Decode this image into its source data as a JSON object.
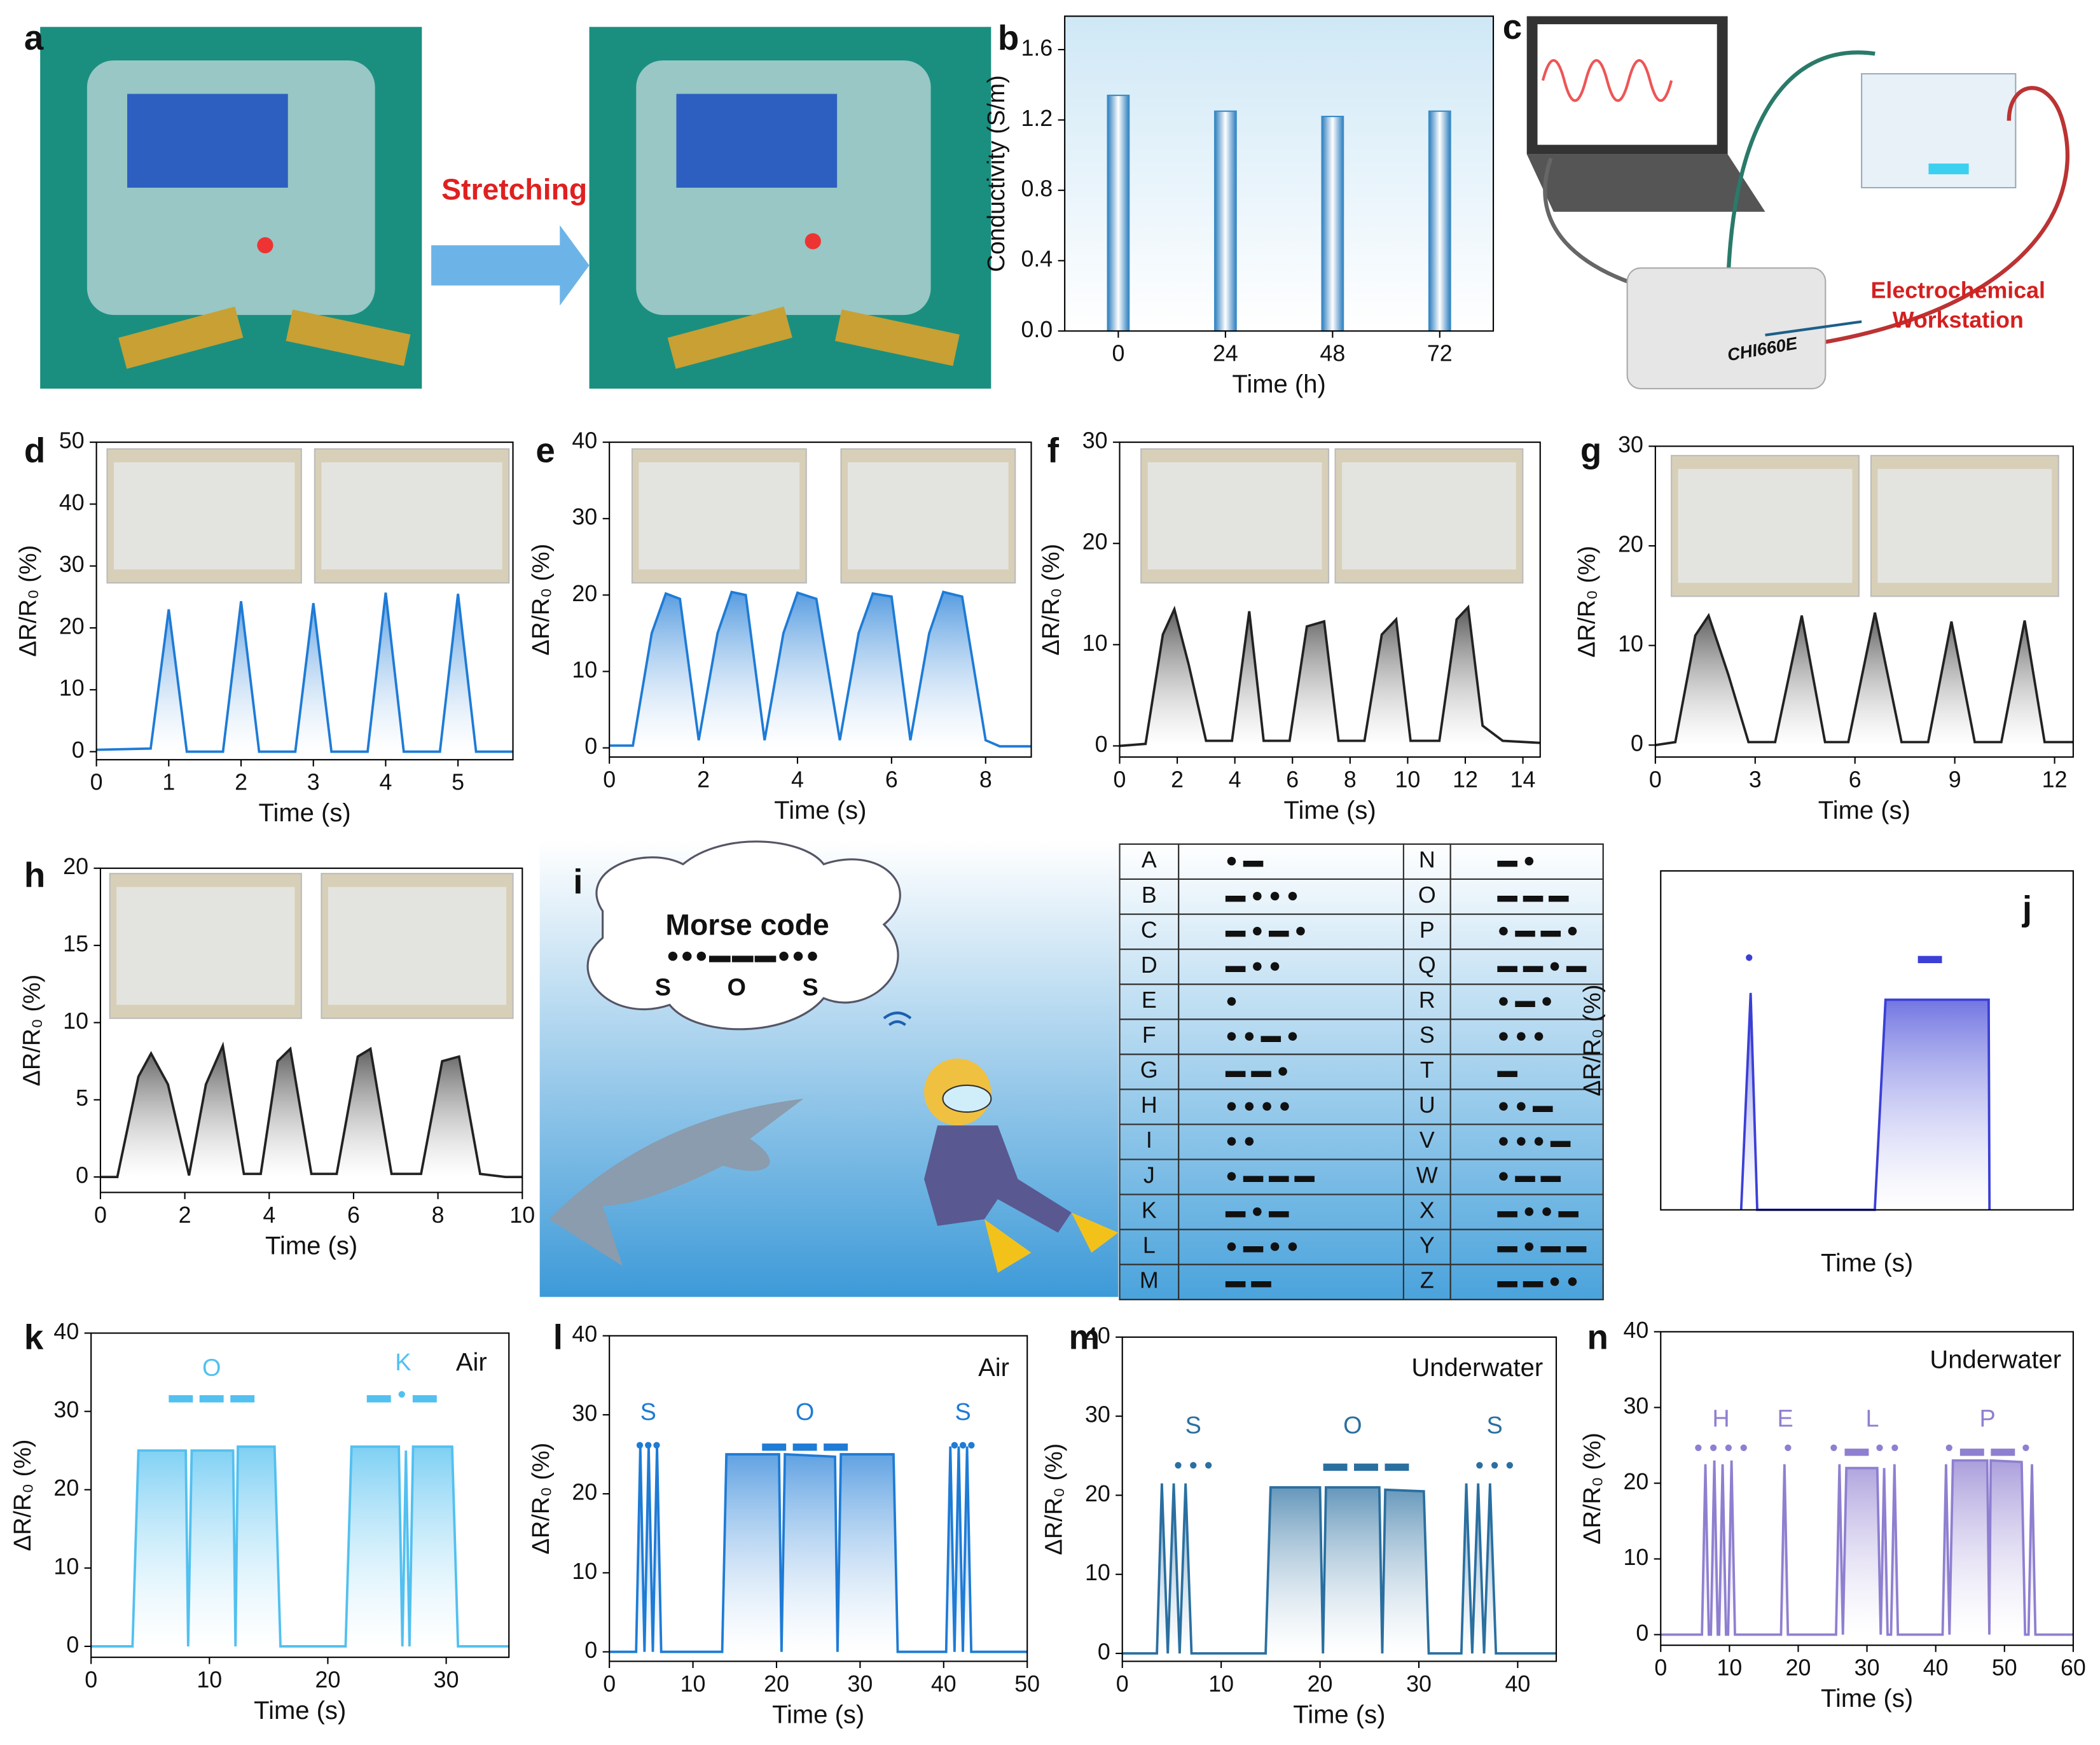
{
  "figure": {
    "panel_labels": [
      "a",
      "b",
      "c",
      "d",
      "e",
      "f",
      "g",
      "h",
      "i",
      "j",
      "k",
      "l",
      "m",
      "n"
    ],
    "panel_a": {
      "annotation": "Stretching"
    },
    "panel_c": {
      "labels": [
        "Electrochemical",
        "Workstation"
      ],
      "model": "CHI660E"
    },
    "panel_i": {
      "cloud_title": "Morse code",
      "cloud_code": "●●●▬▬▬●●●",
      "cloud_letters": [
        "S",
        "O",
        "S"
      ]
    },
    "morse_table": [
      [
        "A",
        "● ▬"
      ],
      [
        "N",
        "▬ ●"
      ],
      [
        "B",
        "▬ ● ● ●"
      ],
      [
        "O",
        "▬ ▬ ▬"
      ],
      [
        "C",
        "▬ ● ▬ ●"
      ],
      [
        "P",
        "● ▬ ▬ ●"
      ],
      [
        "D",
        "▬ ● ●"
      ],
      [
        "Q",
        "▬ ▬ ● ▬"
      ],
      [
        "E",
        "●"
      ],
      [
        "R",
        "● ▬ ●"
      ],
      [
        "F",
        "● ● ▬ ●"
      ],
      [
        "S",
        "● ● ●"
      ],
      [
        "G",
        "▬ ▬ ●"
      ],
      [
        "T",
        "▬"
      ],
      [
        "H",
        "● ● ● ●"
      ],
      [
        "U",
        "● ● ▬"
      ],
      [
        "I",
        "● ●"
      ],
      [
        "V",
        "● ● ● ▬"
      ],
      [
        "J",
        "● ▬ ▬ ▬"
      ],
      [
        "W",
        "● ▬ ▬"
      ],
      [
        "K",
        "▬ ● ▬"
      ],
      [
        "X",
        "▬ ● ● ▬"
      ],
      [
        "L",
        "● ▬ ● ●"
      ],
      [
        "Y",
        "▬ ● ▬ ▬"
      ],
      [
        "M",
        "▬ ▬"
      ],
      [
        "Z",
        "▬ ▬ ● ●"
      ]
    ]
  },
  "chart_data": [
    {
      "type": "bar",
      "xlabel": "Time (h)",
      "ylabel": "Conductivity (S/m)",
      "categories": [
        "0",
        "24",
        "48",
        "72"
      ],
      "values": [
        1.34,
        1.25,
        1.22,
        1.25
      ],
      "color": "#3a8cc8",
      "ylim": [
        0,
        1.79
      ],
      "yticks": [
        {
          "value": 0,
          "label": "0.0"
        },
        0.4,
        0.8,
        1.2,
        1.6
      ]
    },
    {
      "type": "line",
      "xlabel": "Time (s)",
      "ylabel": "ΔR/R₀ (%)",
      "color": "#1e7bd6",
      "xlim": [
        0,
        5.76
      ],
      "ylim": [
        -1.3,
        50
      ],
      "xticks": [
        0,
        1,
        2,
        3,
        4,
        5
      ],
      "yticks": [
        0,
        10,
        20,
        30,
        40,
        50
      ],
      "x": [
        0,
        0.75,
        1,
        1.25,
        1.75,
        2,
        2.25,
        2.75,
        3,
        3.25,
        3.75,
        4,
        4.25,
        4.75,
        5,
        5.25,
        5.76
      ],
      "values": [
        0.3,
        0.5,
        23,
        0,
        0,
        24.3,
        0,
        0,
        24,
        0,
        0,
        25.7,
        0,
        0,
        25.5,
        0,
        0
      ]
    },
    {
      "type": "line",
      "xlabel": "Time (s)",
      "ylabel": "ΔR/R₀ (%)",
      "color": "#1e7bd6",
      "xlim": [
        0,
        8.97
      ],
      "ylim": [
        -1.2,
        40
      ],
      "xticks": [
        0,
        2,
        4,
        6,
        8
      ],
      "yticks": [
        0,
        10,
        20,
        30,
        40
      ],
      "x": [
        0,
        0.5,
        0.9,
        1.2,
        1.5,
        1.9,
        2.3,
        2.6,
        2.9,
        3.3,
        3.7,
        4.0,
        4.4,
        4.9,
        5.3,
        5.6,
        6.0,
        6.4,
        6.8,
        7.1,
        7.5,
        8.0,
        8.3,
        8.97
      ],
      "values": [
        0.3,
        0.3,
        15,
        20.2,
        19.5,
        1,
        15,
        20.4,
        20,
        1,
        15,
        20.3,
        19.5,
        1,
        15,
        20.2,
        19.8,
        1,
        15,
        20.4,
        19.8,
        1,
        0.2,
        0.2
      ]
    },
    {
      "type": "line",
      "xlabel": "Time (s)",
      "ylabel": "ΔR/R₀ (%)",
      "color": "#222222",
      "xlim": [
        0,
        14.6
      ],
      "ylim": [
        -1.1,
        30
      ],
      "xticks": [
        0,
        2,
        4,
        6,
        8,
        10,
        12,
        14
      ],
      "yticks": [
        0,
        10,
        20,
        30
      ],
      "x": [
        0,
        0.9,
        1.5,
        1.9,
        2.4,
        3,
        3.9,
        4.5,
        5,
        5.9,
        6.5,
        7.1,
        7.6,
        8.5,
        9.1,
        9.6,
        10.1,
        11.1,
        11.7,
        12.1,
        12.6,
        13.3,
        14.6
      ],
      "values": [
        0,
        0.2,
        11,
        13.5,
        8,
        0.5,
        0.5,
        13.3,
        0.5,
        0.5,
        11.8,
        12.3,
        0.5,
        0.5,
        11,
        12.5,
        0.5,
        0.5,
        12.5,
        13.7,
        2,
        0.5,
        0.3
      ]
    },
    {
      "type": "line",
      "xlabel": "Time (s)",
      "ylabel": "ΔR/R₀ (%)",
      "color": "#222222",
      "xlim": [
        0,
        12.56
      ],
      "ylim": [
        -1.2,
        30
      ],
      "xticks": [
        0,
        3,
        6,
        9,
        12
      ],
      "yticks": [
        0,
        10,
        20,
        30
      ],
      "x": [
        0,
        0.6,
        1.2,
        1.6,
        2.2,
        2.8,
        3.6,
        4.4,
        5.1,
        5.8,
        6.6,
        7.4,
        8.2,
        8.9,
        9.6,
        10.4,
        11.1,
        11.7,
        12.56
      ],
      "values": [
        0,
        0.3,
        11,
        13,
        7,
        0.3,
        0.3,
        13,
        0.3,
        0.3,
        13.3,
        0.3,
        0.3,
        12.4,
        0.3,
        0.3,
        12.5,
        0.3,
        0.3
      ]
    },
    {
      "type": "line",
      "xlabel": "Time (s)",
      "ylabel": "ΔR/R₀ (%)",
      "color": "#222222",
      "xlim": [
        0,
        10
      ],
      "ylim": [
        -1,
        20
      ],
      "xticks": [
        0,
        2,
        4,
        6,
        8,
        10
      ],
      "yticks": [
        0,
        5,
        10,
        15,
        20
      ],
      "x": [
        0,
        0.4,
        0.9,
        1.2,
        1.6,
        2.1,
        2.5,
        2.9,
        3.4,
        3.8,
        4.2,
        4.5,
        5.0,
        5.6,
        6.1,
        6.4,
        6.9,
        7.6,
        8.1,
        8.5,
        9.0,
        9.6,
        10
      ],
      "values": [
        0,
        0,
        6.5,
        8,
        6,
        0.1,
        6,
        8.5,
        0.2,
        0.2,
        7.5,
        8.3,
        0.2,
        0.2,
        7.8,
        8.3,
        0.2,
        0.2,
        7.5,
        7.8,
        0.2,
        0,
        0
      ]
    },
    {
      "type": "line",
      "xlabel": "Time (s)",
      "ylabel": "ΔR/R₀ (%)",
      "color": "#3b3fd6",
      "xlim": [
        0,
        10
      ],
      "ylim": [
        0,
        10
      ],
      "annotations": [
        "•",
        "▬"
      ],
      "x": [
        1.95,
        2.18,
        2.34,
        5.19,
        5.45,
        7.95,
        7.97
      ],
      "values": [
        0,
        6.4,
        0,
        0,
        6.2,
        6.2,
        0
      ]
    },
    {
      "type": "line",
      "xlabel": "Time (s)",
      "ylabel": "ΔR/R₀ (%)",
      "color": "#52c0f0",
      "xlim": [
        0,
        35.3
      ],
      "ylim": [
        -1.4,
        40
      ],
      "xticks": [
        0,
        10,
        20,
        30
      ],
      "yticks": [
        0,
        10,
        20,
        30,
        40
      ],
      "annotations": [
        "Air",
        "O",
        "K",
        "▬ ▬ ▬",
        "▬ • ▬"
      ],
      "x": [
        0,
        3.5,
        4,
        8,
        8.2,
        8.5,
        12,
        12.2,
        12.4,
        15.5,
        16,
        21.5,
        22,
        26,
        26.3,
        26.6,
        26.9,
        27.2,
        30.5,
        31,
        35.3
      ],
      "values": [
        0,
        0,
        25,
        25,
        0,
        25,
        25,
        0,
        25.5,
        25.5,
        0,
        0,
        25.5,
        25.5,
        0,
        25,
        0,
        25.5,
        25.5,
        0,
        0
      ]
    },
    {
      "type": "line",
      "xlabel": "Time (s)",
      "ylabel": "ΔR/R₀ (%)",
      "color": "#1e7bd6",
      "xlim": [
        0,
        50
      ],
      "ylim": [
        -1.2,
        40
      ],
      "xticks": [
        0,
        10,
        20,
        30,
        40,
        50
      ],
      "yticks": [
        0,
        10,
        20,
        30,
        40
      ],
      "annotations": [
        "Air",
        "S",
        "O",
        "S",
        "•••",
        "▬ ▬ ▬",
        "•••"
      ],
      "x": [
        0,
        3.2,
        3.7,
        4.2,
        4.7,
        5.2,
        5.7,
        6.2,
        6.7,
        13.5,
        14,
        20.3,
        20.6,
        21,
        27,
        27.3,
        27.7,
        34,
        34.5,
        40.3,
        40.8,
        41.3,
        41.8,
        42.3,
        42.8,
        43.3,
        50
      ],
      "values": [
        0,
        0,
        26,
        0,
        26,
        0,
        26,
        0,
        0,
        0,
        25,
        25,
        0,
        25,
        24.7,
        0,
        25,
        25,
        0,
        0,
        26,
        0,
        26,
        0,
        26,
        0,
        0
      ]
    },
    {
      "type": "line",
      "xlabel": "Time (s)",
      "ylabel": "ΔR/R₀ (%)",
      "color": "#2a6fa0",
      "xlim": [
        0,
        43.9
      ],
      "ylim": [
        -1,
        40
      ],
      "xticks": [
        0,
        10,
        20,
        30,
        40
      ],
      "yticks": [
        0,
        10,
        20,
        30,
        40
      ],
      "annotations": [
        "Underwater",
        "S",
        "O",
        "S",
        "• • •",
        "▬ ▬ ▬",
        "• • •"
      ],
      "x": [
        0,
        3.5,
        4,
        4.6,
        5.2,
        5.8,
        6.4,
        7,
        7.6,
        14.5,
        15,
        20,
        20.3,
        20.6,
        26,
        26.3,
        26.6,
        30.5,
        31,
        34.3,
        34.8,
        35.4,
        36,
        36.6,
        37.2,
        37.8,
        43.9
      ],
      "values": [
        0,
        0,
        21.5,
        0,
        21.5,
        0,
        21.5,
        0,
        0,
        0,
        21,
        21,
        0,
        21,
        21,
        0,
        20.7,
        20.5,
        0,
        0,
        21.5,
        0,
        21.5,
        0,
        21.5,
        0,
        0
      ]
    },
    {
      "type": "line",
      "xlabel": "Time (s)",
      "ylabel": "ΔR/R₀ (%)",
      "color": "#8f7fd0",
      "xlim": [
        0,
        60
      ],
      "ylim": [
        -1.4,
        40
      ],
      "xticks": [
        0,
        10,
        20,
        30,
        40,
        50,
        60
      ],
      "yticks": [
        0,
        10,
        20,
        30,
        40
      ],
      "annotations": [
        "Underwater",
        "H",
        "E",
        "L",
        "P",
        "• • • •",
        "•",
        "• ▬ • •",
        "• ▬ ▬ •"
      ],
      "x": [
        0,
        5,
        6,
        6.5,
        7,
        7.3,
        7.8,
        8.3,
        8.5,
        9,
        9.5,
        9.8,
        10.3,
        10.8,
        17.5,
        18,
        18.5,
        25.5,
        26,
        26.5,
        27,
        31.5,
        32,
        32.5,
        33,
        33.5,
        34,
        34.5,
        41,
        41.5,
        42,
        42.5,
        47.5,
        47.8,
        48,
        52.5,
        53,
        53.5,
        54,
        54.5,
        60
      ],
      "values": [
        0,
        0,
        0,
        22.5,
        0,
        0,
        23,
        0,
        0,
        22.5,
        0,
        0,
        23,
        0,
        0,
        22.5,
        0,
        0,
        22.5,
        0,
        22,
        22,
        0,
        22,
        0,
        0,
        22.5,
        0,
        0,
        22.5,
        0,
        23,
        23,
        0,
        23,
        22.8,
        0,
        0,
        22.5,
        0,
        0
      ]
    }
  ]
}
